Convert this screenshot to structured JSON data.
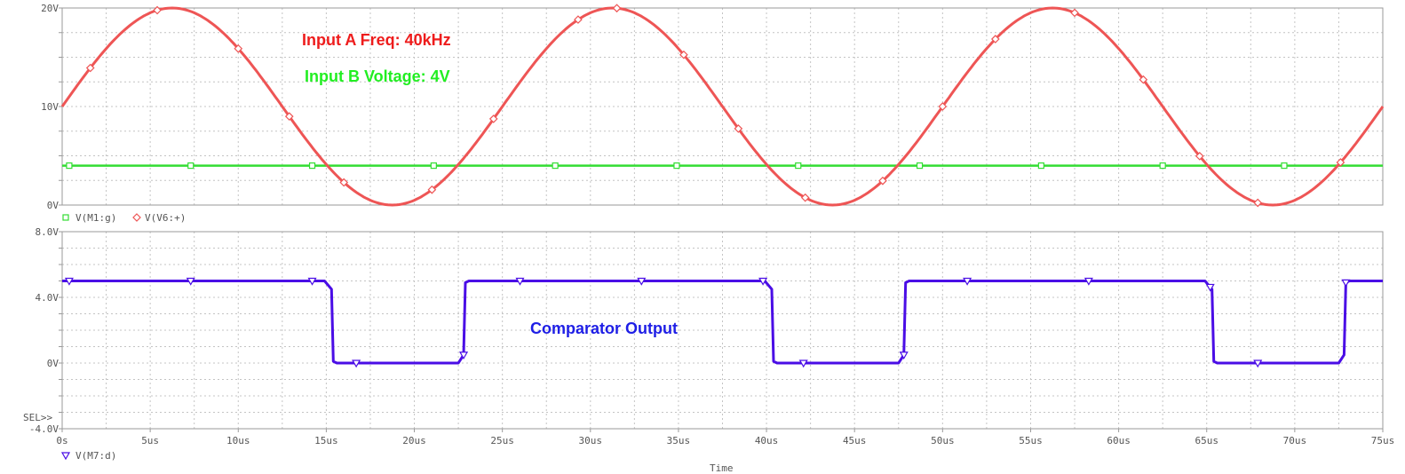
{
  "chart_data": [
    {
      "type": "line",
      "title": "",
      "xlabel": "",
      "ylabel": "",
      "xlim": [
        0,
        75
      ],
      "ylim": [
        0,
        20
      ],
      "x_unit": "us",
      "y_tick_labels": [
        "20V",
        "10V",
        "0V"
      ],
      "y_ticks": [
        20,
        10,
        0
      ],
      "grid": true,
      "legend_position": "bottom-left",
      "series": [
        {
          "name": "V(M1:g)",
          "color": "#33dd33",
          "marker": "square",
          "constant_value": 4,
          "x": [
            0.4,
            7.3,
            14.2,
            21.1,
            28.0,
            34.9,
            41.8,
            48.7,
            55.6,
            62.5,
            69.4,
            75.0
          ],
          "values": [
            4,
            4,
            4,
            4,
            4,
            4,
            4,
            4,
            4,
            4,
            4,
            4
          ]
        },
        {
          "name": "V(V6:+)",
          "color": "#ee5555",
          "marker": "diamond",
          "waveform": "sine",
          "amplitude": 10,
          "offset": 10,
          "period_us": 25,
          "x": [
            0,
            1.6,
            5.4,
            10.0,
            12.9,
            16.0,
            21.0,
            24.5,
            29.3,
            31.5,
            35.3,
            38.4,
            42.2,
            46.6,
            50.0,
            53.0,
            57.5,
            61.4,
            64.6,
            67.9,
            72.6,
            75.0
          ],
          "values": [
            10,
            14.0,
            20.0,
            16.0,
            8.8,
            2.0,
            1.8,
            8.4,
            15.5,
            20.0,
            14.6,
            7.4,
            1.1,
            2.9,
            10.0,
            16.8,
            19.3,
            13.0,
            5.8,
            0.1,
            4.3,
            10.0
          ]
        }
      ],
      "annotations": [
        {
          "text": "Input A Freq: 40kHz",
          "color": "#ee1c1c"
        },
        {
          "text": "Input B Voltage: 4V",
          "color": "#22ee22"
        }
      ]
    },
    {
      "type": "line",
      "title": "",
      "xlabel": "Time",
      "ylabel": "",
      "xlim": [
        0,
        75
      ],
      "ylim": [
        -4,
        8
      ],
      "x_unit": "us",
      "x_ticks": [
        0,
        5,
        10,
        15,
        20,
        25,
        30,
        35,
        40,
        45,
        50,
        55,
        60,
        65,
        70,
        75
      ],
      "x_tick_labels": [
        "0s",
        "5us",
        "10us",
        "15us",
        "20us",
        "25us",
        "30us",
        "35us",
        "40us",
        "45us",
        "50us",
        "55us",
        "60us",
        "65us",
        "70us",
        "75us"
      ],
      "y_ticks": [
        8,
        4,
        0,
        -4
      ],
      "y_tick_labels": [
        "8.0V",
        "4.0V",
        "0V",
        "-4.0V"
      ],
      "grid": true,
      "legend_position": "bottom-left",
      "selection_marker": "SEL>>",
      "series": [
        {
          "name": "V(M7:d)",
          "color": "#4a0de6",
          "marker": "triangle-down",
          "x": [
            0,
            14.9,
            15.3,
            15.4,
            15.6,
            22.5,
            22.8,
            22.9,
            23.1,
            39.9,
            40.3,
            40.4,
            40.6,
            47.5,
            47.8,
            47.9,
            48.1,
            64.9,
            65.3,
            65.4,
            65.6,
            72.5,
            72.8,
            72.9,
            73.1,
            75.0
          ],
          "values": [
            5,
            5,
            4.5,
            0.1,
            0,
            0,
            0.5,
            4.9,
            5,
            5,
            4.5,
            0.1,
            0,
            0,
            0.5,
            4.9,
            5,
            5,
            4.5,
            0.1,
            0,
            0,
            0.5,
            4.9,
            5,
            5
          ],
          "marker_x": [
            0.4,
            7.3,
            14.2,
            16.7,
            22.8,
            26.0,
            32.9,
            39.8,
            42.1,
            47.8,
            51.4,
            58.3,
            65.2,
            67.9,
            72.9
          ]
        }
      ],
      "annotations": [
        {
          "text": "Comparator Output",
          "color": "#1e1ee6"
        }
      ]
    }
  ]
}
